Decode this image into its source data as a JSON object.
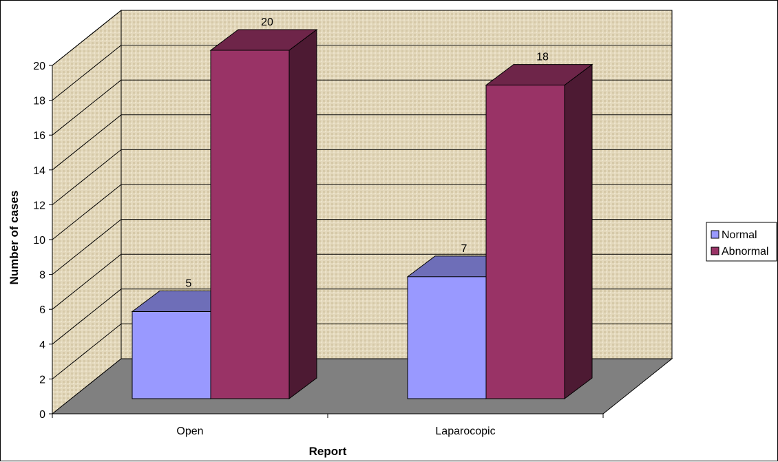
{
  "chart_data": {
    "type": "bar",
    "style": "3d-clustered-column",
    "title": "",
    "xlabel": "Report",
    "ylabel": "Number of cases",
    "categories": [
      "Open",
      "Laparocopic"
    ],
    "series": [
      {
        "name": "Normal",
        "values": [
          5,
          7
        ],
        "color": "#9999ff"
      },
      {
        "name": "Abnormal",
        "values": [
          20,
          18
        ],
        "color": "#993366"
      }
    ],
    "ylim": [
      0,
      20
    ],
    "yticks": [
      0,
      2,
      4,
      6,
      8,
      10,
      12,
      14,
      16,
      18,
      20
    ],
    "grid": true,
    "legend": "right",
    "data_labels": true
  }
}
